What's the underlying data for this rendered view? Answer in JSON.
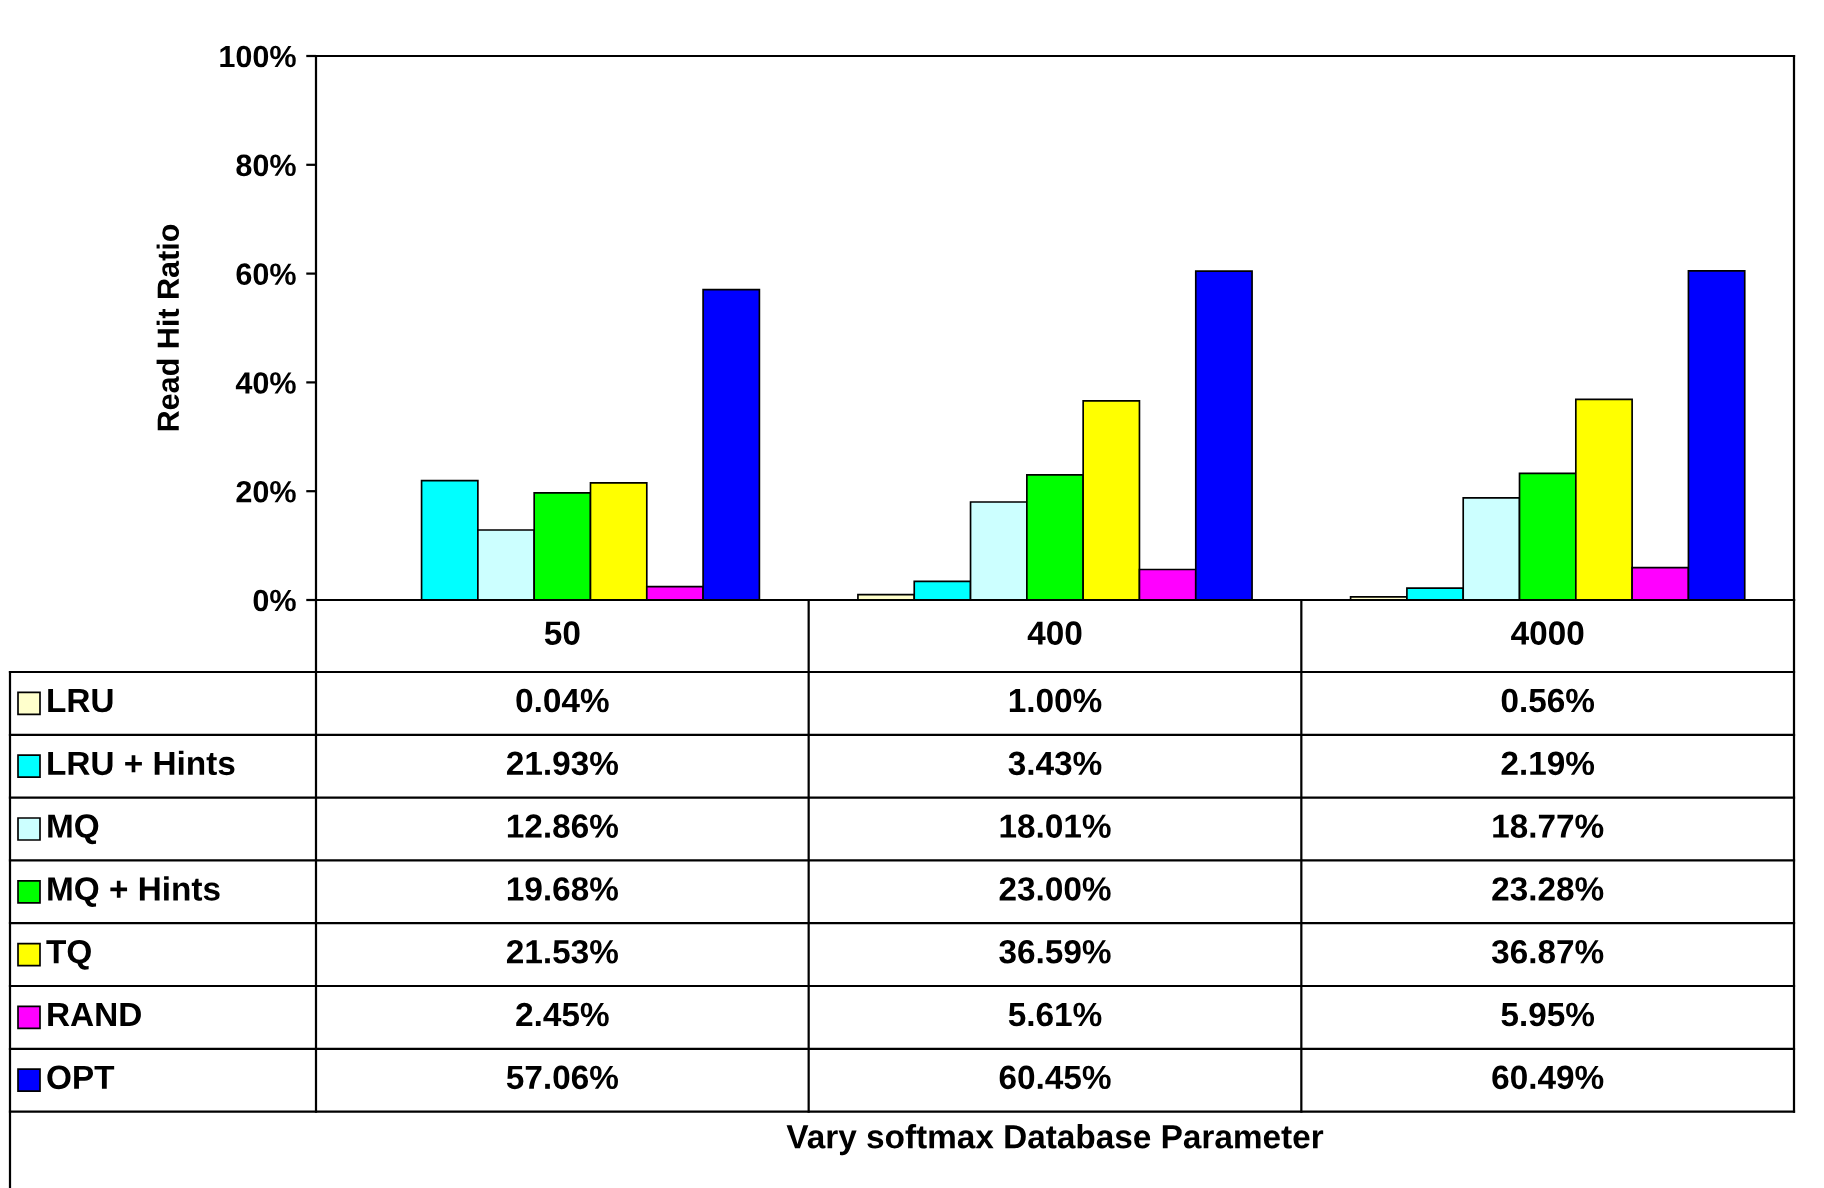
{
  "chart_data": {
    "type": "bar",
    "ylabel": "Read Hit Ratio",
    "annotations": [
      "Vary softmax Database Parameter"
    ],
    "categories": [
      "50",
      "400",
      "4000"
    ],
    "legend": "bottom left",
    "ylim": [
      0,
      100
    ],
    "yticks": [
      {
        "value": 0,
        "label": "0%"
      },
      {
        "value": 20,
        "label": "20%"
      },
      {
        "value": 40,
        "label": "40%"
      },
      {
        "value": 60,
        "label": "60%"
      },
      {
        "value": 80,
        "label": "80%"
      },
      {
        "value": 100,
        "label": "100%"
      }
    ],
    "series": [
      {
        "name": "LRU",
        "color": "#ffffcc",
        "values": [
          0.04,
          1.0,
          0.56
        ],
        "value_labels": [
          "0.04%",
          "1.00%",
          "0.56%"
        ]
      },
      {
        "name": "LRU + Hints",
        "color": "#00ffff",
        "values": [
          21.93,
          3.43,
          2.19
        ],
        "value_labels": [
          "21.93%",
          "3.43%",
          "2.19%"
        ]
      },
      {
        "name": "MQ",
        "color": "#ccffff",
        "values": [
          12.86,
          18.01,
          18.77
        ],
        "value_labels": [
          "12.86%",
          "18.01%",
          "18.77%"
        ]
      },
      {
        "name": "MQ + Hints",
        "color": "#00ff00",
        "values": [
          19.68,
          23.0,
          23.28
        ],
        "value_labels": [
          "19.68%",
          "23.00%",
          "23.28%"
        ]
      },
      {
        "name": "TQ",
        "color": "#ffff00",
        "values": [
          21.53,
          36.59,
          36.87
        ],
        "value_labels": [
          "21.53%",
          "36.59%",
          "36.87%"
        ]
      },
      {
        "name": "RAND",
        "color": "#ff00ff",
        "values": [
          2.45,
          5.61,
          5.95
        ],
        "value_labels": [
          "2.45%",
          "5.61%",
          "5.95%"
        ]
      },
      {
        "name": "OPT",
        "color": "#0000ff",
        "values": [
          57.06,
          60.45,
          60.49
        ],
        "value_labels": [
          "57.06%",
          "60.45%",
          "60.49%"
        ]
      }
    ]
  }
}
